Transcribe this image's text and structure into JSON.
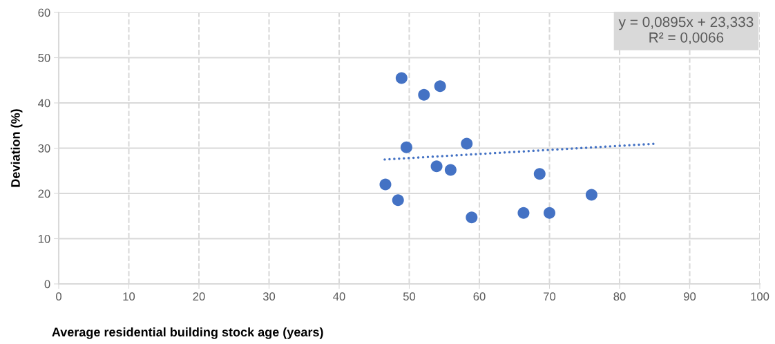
{
  "chart_data": {
    "type": "scatter",
    "xlabel": "Average residential building stock age (years)",
    "ylabel": "Deviation (%)",
    "xlim": [
      0,
      100
    ],
    "xticks": [
      0,
      10,
      20,
      30,
      40,
      50,
      60,
      70,
      80,
      90,
      100
    ],
    "ylim": [
      0,
      60
    ],
    "yticks": [
      0,
      10,
      20,
      30,
      40,
      50,
      60
    ],
    "grid": true,
    "marker": "circle",
    "legend": false,
    "annotations": [
      "y = 0,0895x + 23,333\nR² = 0,0066"
    ],
    "series": [
      {
        "color": "#4472c4",
        "x": [
          48.9,
          52.1,
          54.4,
          49.6,
          58.2,
          53.9,
          55.9,
          46.6,
          48.4,
          58.9,
          68.6,
          66.3,
          70.0,
          76.0
        ],
        "values": [
          45.5,
          41.8,
          43.7,
          30.2,
          31.0,
          26.0,
          25.2,
          22.0,
          18.5,
          14.7,
          24.3,
          15.7,
          15.7,
          19.7
        ]
      },
      {
        "type": "line",
        "color": "#4472c4",
        "line_style": "dotted",
        "marker": "none",
        "x": [
          46.5,
          85.3
        ],
        "values": [
          27.5,
          31.0
        ]
      }
    ]
  }
}
